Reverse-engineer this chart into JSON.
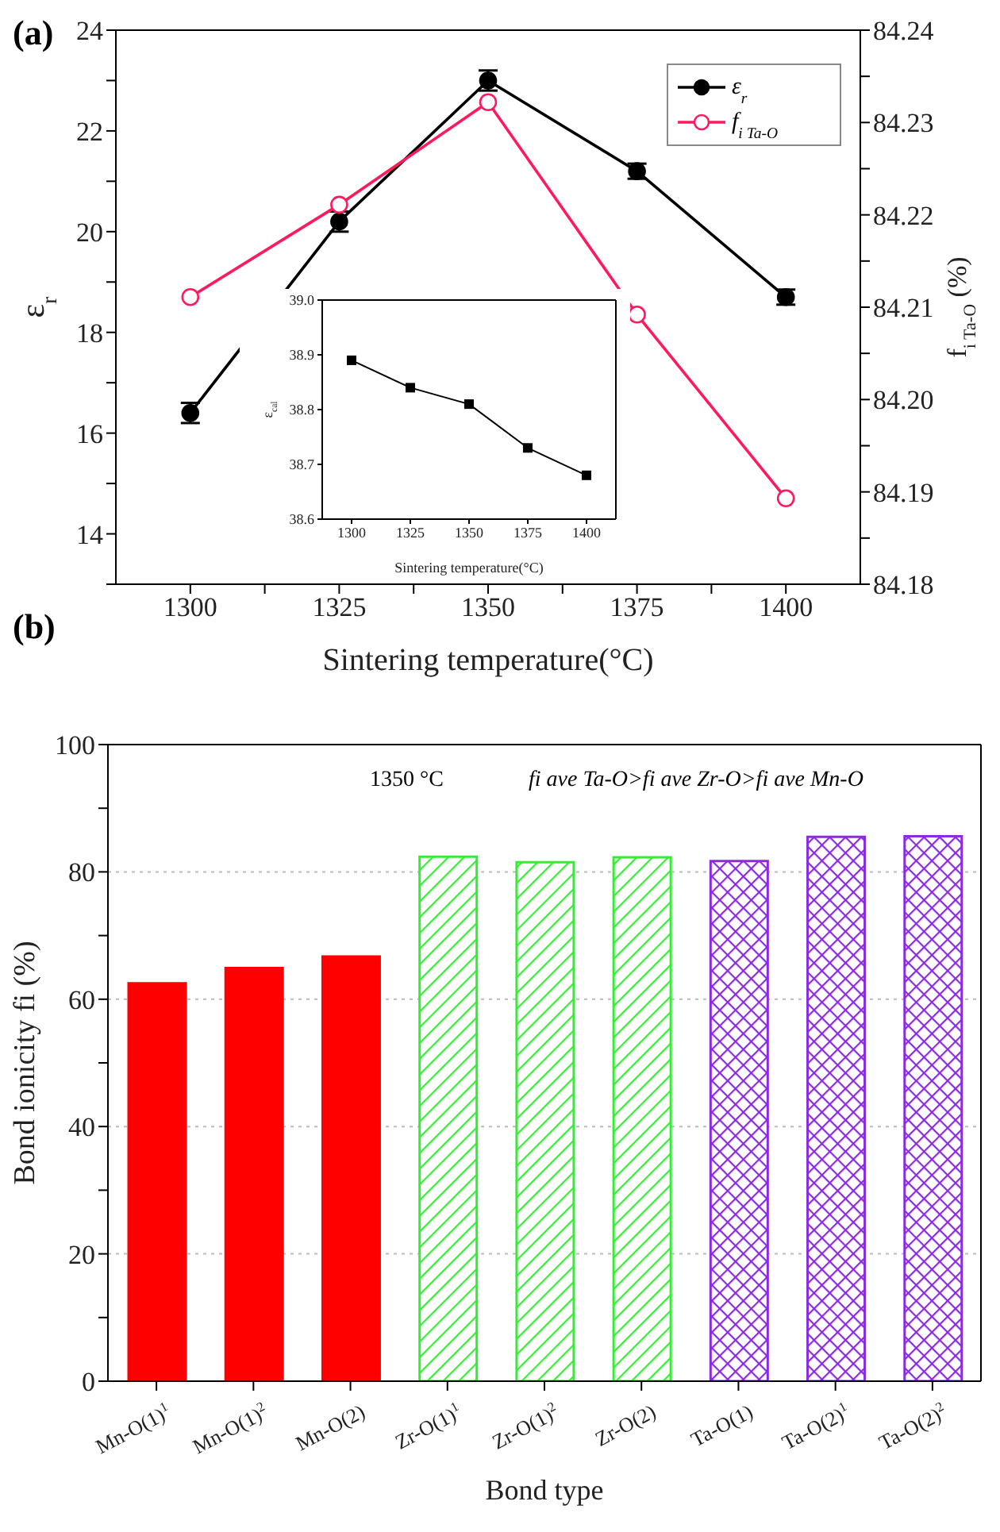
{
  "chart_data": [
    {
      "type": "line",
      "title": "(a)",
      "xlabel": "Sintering temperature(°C)",
      "ylabel": "ε$_{r}$",
      "y2label": "f$_{i Ta-O}$ (%)",
      "x": [
        1300,
        1325,
        1350,
        1375,
        1400
      ],
      "xlim": [
        1287.5,
        1412.5
      ],
      "xticks": [
        1300,
        {
          "value": 1312.5,
          "label": null
        },
        1325,
        {
          "value": 1337.5,
          "label": null
        },
        1350,
        {
          "value": 1362.5,
          "label": null
        },
        1375,
        {
          "value": 1387.5,
          "label": null
        },
        1400
      ],
      "ylim": [
        13,
        24
      ],
      "yticks": [
        {
          "value": 13,
          "label": null
        },
        14,
        {
          "value": 15,
          "label": null
        },
        16,
        {
          "value": 17,
          "label": null
        },
        18,
        {
          "value": 19,
          "label": null
        },
        20,
        {
          "value": 21,
          "label": null
        },
        22,
        {
          "value": 23,
          "label": null
        },
        24
      ],
      "y2lim": [
        84.18,
        84.24
      ],
      "y2ticks": [
        84.18,
        {
          "value": 84.185,
          "label": null
        },
        84.19,
        {
          "value": 84.195,
          "label": null
        },
        {
          "value": 84.2,
          "label": "84.20"
        },
        {
          "value": 84.205,
          "label": null
        },
        84.21,
        {
          "value": 84.215,
          "label": null
        },
        84.22,
        {
          "value": 84.225,
          "label": null
        },
        84.23,
        {
          "value": 84.235,
          "label": null
        },
        84.24
      ],
      "series": [
        {
          "name": "ε$_{r}$",
          "color": "#000000",
          "values": [
            16.4,
            20.2,
            23.0,
            21.2,
            18.7
          ],
          "errors": [
            0.2,
            0.2,
            0.2,
            0.15,
            0.15
          ],
          "marker": "circle"
        },
        {
          "name": "f$_{i Ta-O}$",
          "color": "#ff1a5e",
          "values": [
            84.2111,
            84.2211,
            84.2322,
            84.2092,
            84.1893
          ],
          "axis": "y2",
          "marker": "circle"
        }
      ],
      "legend": "top right",
      "line_style": "solid"
    },
    {
      "type": "line",
      "xlabel": "Sintering temperature(°C)",
      "ylabel": "ε$_{cal}$",
      "x": [
        1300,
        1325,
        1350,
        1375,
        1400
      ],
      "xlim": [
        1287.5,
        1412.5
      ],
      "xticks": [
        1300,
        1325,
        1350,
        1375,
        1400
      ],
      "ylim": [
        38.6,
        39.0
      ],
      "yticks": [
        {
          "value": 38.6,
          "label": "38.6"
        },
        {
          "value": 38.7,
          "label": "38.7"
        },
        {
          "value": 38.8,
          "label": "38.8"
        },
        {
          "value": 38.9,
          "label": "38.9"
        },
        {
          "value": 39.0,
          "label": "39.0"
        }
      ],
      "series": [
        {
          "color": "#000000",
          "values": [
            38.89,
            38.84,
            38.81,
            38.73,
            38.68
          ],
          "marker": "square"
        }
      ],
      "line_style": "solid"
    },
    {
      "type": "bar",
      "title": "(b)",
      "xlabel": "Bond type",
      "ylabel": "Bond ionicity fi (%)",
      "categories": [
        "Mn-O(1)$^{1}$",
        "Mn-O(1)$^{2}$",
        "Mn-O(2)",
        "Zr-O(1)$^{1}$",
        "Zr-O(1)$^{2}$",
        "Zr-O(2)",
        "Ta-O(1)",
        "Ta-O(2)$^{1}$",
        "Ta-O(2)$^{2}$"
      ],
      "values": [
        62.5,
        64.9,
        66.7,
        82.4,
        81.5,
        82.3,
        81.7,
        85.5,
        85.6
      ],
      "colors": [
        "#ff0000",
        "#ff0000",
        "#ff0000",
        "#33ee33",
        "#33ee33",
        "#33ee33",
        "#8a2be2",
        "#8a2be2",
        "#8a2be2"
      ],
      "ylim": [
        0,
        100
      ],
      "yticks": [
        0,
        {
          "value": 10,
          "label": null
        },
        20,
        {
          "value": 30,
          "label": null
        },
        40,
        {
          "value": 50,
          "label": null
        },
        60,
        {
          "value": 70,
          "label": null
        },
        80,
        {
          "value": 90,
          "label": null
        },
        100
      ],
      "annotations": [
        "1350 °C",
        "fi ave Ta-O>fi ave Zr-O>fi ave Mn-O"
      ],
      "grid": "y"
    }
  ]
}
